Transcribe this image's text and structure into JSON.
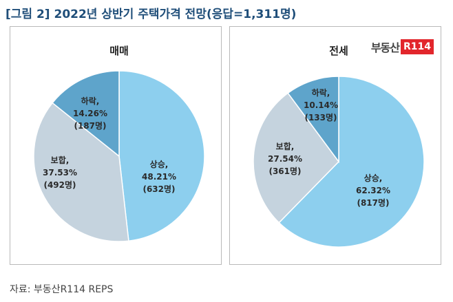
{
  "title": "[그림 2] 2022년 상반기 주택가격 전망(응답=1,311명)",
  "source": "자료: 부동산R114 REPS",
  "brand": {
    "text": "부동산",
    "box": "R114"
  },
  "chart_data": [
    {
      "type": "pie",
      "title": "매매",
      "slices": [
        {
          "label": "상승,",
          "percent": "48.21%",
          "count": "(632명)",
          "value": 48.21,
          "color": "#8dcfee"
        },
        {
          "label": "보합,",
          "percent": "37.53%",
          "count": "(492명)",
          "value": 37.53,
          "color": "#c5d3de"
        },
        {
          "label": "하락,",
          "percent": "14.26%",
          "count": "(187명)",
          "value": 14.26,
          "color": "#5ea4cb"
        }
      ]
    },
    {
      "type": "pie",
      "title": "전세",
      "slices": [
        {
          "label": "상승,",
          "percent": "62.32%",
          "count": "(817명)",
          "value": 62.32,
          "color": "#8dcfee"
        },
        {
          "label": "보합,",
          "percent": "27.54%",
          "count": "(361명)",
          "value": 27.54,
          "color": "#c5d3de"
        },
        {
          "label": "하락,",
          "percent": "10.14%",
          "count": "(133명)",
          "value": 10.14,
          "color": "#5ea4cb"
        }
      ]
    }
  ]
}
